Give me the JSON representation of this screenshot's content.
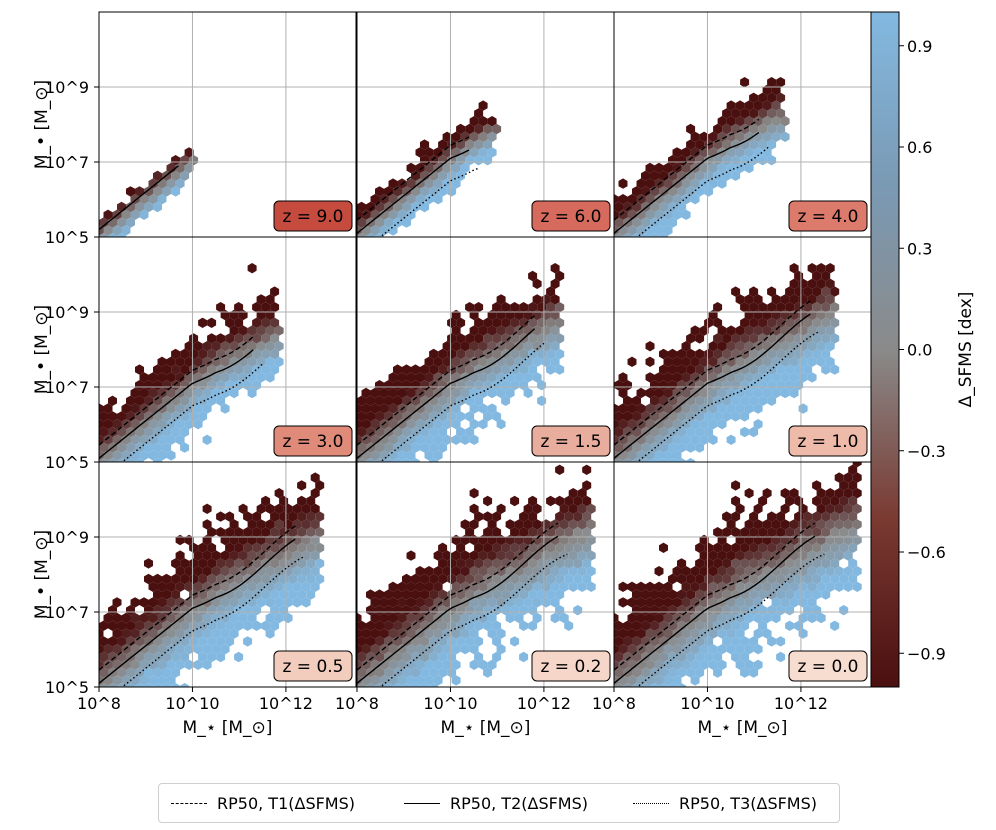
{
  "chart_data": {
    "type": "hexbin-grid",
    "xlabel": "M_⋆ [M_⊙]",
    "ylabel": "M_• [M_⊙]",
    "xlim_log10": [
      8,
      13.5
    ],
    "ylim_log10": [
      5,
      11
    ],
    "x_tick_labels": [
      "10^8",
      "10^10",
      "10^12"
    ],
    "y_tick_labels": [
      "10^5",
      "10^7",
      "10^9"
    ],
    "colorbar": {
      "label": "Δ_SFMS [dex]",
      "range": [
        -1.0,
        1.0
      ],
      "ticks": [
        "0.9",
        "0.6",
        "0.3",
        "0.0",
        "−0.3",
        "−0.6",
        "−0.9"
      ],
      "tick_values": [
        0.9,
        0.6,
        0.3,
        0.0,
        -0.3,
        -0.6,
        -0.9
      ],
      "low_color": "#4a0f0f",
      "mid_color": "#8a8a8a",
      "high_color": "#83b9e1"
    },
    "panels": [
      {
        "z": "z = 9.0",
        "redshift": 9.0,
        "badge": "#c64b3f",
        "xmax": 10.0,
        "ymax": 8.6,
        "scatter": 0.25
      },
      {
        "z": "z = 6.0",
        "redshift": 6.0,
        "badge": "#d66a5d",
        "xmax": 10.9,
        "ymax": 9.6,
        "scatter": 0.45
      },
      {
        "z": "z = 4.0",
        "redshift": 4.0,
        "badge": "#dc7a6b",
        "xmax": 11.6,
        "ymax": 9.9,
        "scatter": 0.7
      },
      {
        "z": "z = 3.0",
        "redshift": 3.0,
        "badge": "#e08a7a",
        "xmax": 11.8,
        "ymax": 10.2,
        "scatter": 0.9
      },
      {
        "z": "z = 1.5",
        "redshift": 1.5,
        "badge": "#e9ad9d",
        "xmax": 12.3,
        "ymax": 10.6,
        "scatter": 1.1
      },
      {
        "z": "z = 1.0",
        "redshift": 1.0,
        "badge": "#eebaa9",
        "xmax": 12.7,
        "ymax": 10.7,
        "scatter": 1.2
      },
      {
        "z": "z = 0.5",
        "redshift": 0.5,
        "badge": "#f2ccbd",
        "xmax": 12.7,
        "ymax": 10.8,
        "scatter": 1.3
      },
      {
        "z": "z = 0.2",
        "redshift": 0.2,
        "badge": "#f5d6c8",
        "xmax": 13.0,
        "ymax": 11.0,
        "scatter": 1.4
      },
      {
        "z": "z = 0.0",
        "redshift": 0.0,
        "badge": "#f7dcd0",
        "xmax": 13.2,
        "ymax": 11.0,
        "scatter": 1.5
      }
    ],
    "legend": [
      {
        "label": "RP50, T1(ΔSFMS)",
        "style": "dashed"
      },
      {
        "label": "RP50, T2(ΔSFMS)",
        "style": "solid"
      },
      {
        "label": "RP50, T3(ΔSFMS)",
        "style": "dotted"
      }
    ]
  }
}
